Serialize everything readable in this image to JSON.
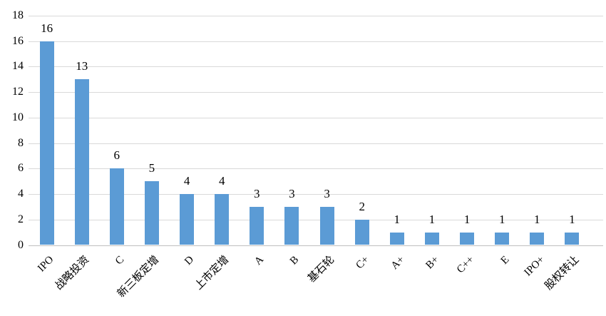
{
  "page": {
    "background_color": "#ffffff",
    "text_color": "#000000"
  },
  "chart_data": {
    "type": "bar",
    "title": "",
    "xlabel": "",
    "ylabel": "",
    "categories": [
      "IPO",
      "战略投资",
      "C",
      "新三板定增",
      "D",
      "上市定增",
      "A",
      "B",
      "基石轮",
      "C+",
      "A+",
      "B+",
      "C++",
      "E",
      "IPO+",
      "股权转让"
    ],
    "values": [
      16,
      13,
      6,
      5,
      4,
      4,
      3,
      3,
      3,
      2,
      1,
      1,
      1,
      1,
      1,
      1
    ],
    "ylim": [
      0,
      18
    ],
    "ytick_step": 2,
    "ytick_labels": [
      "0",
      "2",
      "4",
      "6",
      "8",
      "10",
      "12",
      "14",
      "16",
      "18"
    ],
    "grid": true,
    "legend": false,
    "data_labels": true,
    "x_label_rotation_deg": 45,
    "bar_color": "#5b9bd5",
    "gridline_color": "#d9d9d9",
    "axis_line_color": "#bfbfbf",
    "label_color": "#000000"
  }
}
